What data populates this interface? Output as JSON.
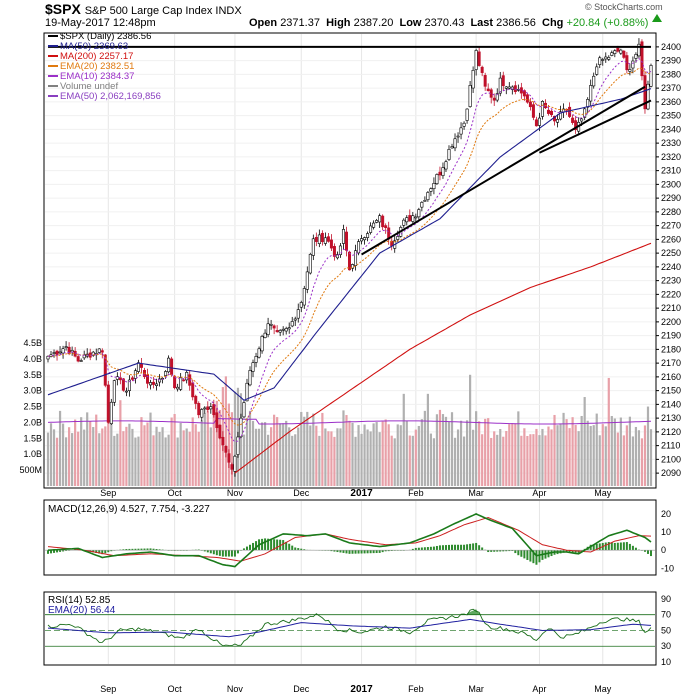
{
  "header": {
    "symbol": "$SPX",
    "name": "S&P 500 Large Cap Index",
    "exchange": "INDX",
    "datetime": "19-May-2017 12:48pm",
    "open_label": "Open",
    "open": "2371.37",
    "high_label": "High",
    "high": "2387.20",
    "low_label": "Low",
    "low": "2370.43",
    "last_label": "Last",
    "last": "2386.56",
    "chg_label": "Chg",
    "chg": "+20.84 (+0.88%)",
    "watermark": "© StockCharts.com"
  },
  "legend": [
    {
      "text": "$SPX (Daily) 2386.56",
      "color": "#000000"
    },
    {
      "text": "MA(50) 2369.63",
      "color": "#1f1f8f"
    },
    {
      "text": "MA(200) 2257.17",
      "color": "#d01010"
    },
    {
      "text": "EMA(20) 2382.51",
      "color": "#e07a10"
    },
    {
      "text": "EMA(10) 2384.37",
      "color": "#9b30c8"
    },
    {
      "text": "Volume undef",
      "color": "#808080"
    },
    {
      "text": "EMA(50) 2,062,169,856",
      "color": "#8a3fc0"
    }
  ],
  "macd_legend": "MACD(12,26,9) 4.527, 7.754, -3.227",
  "rsi_legend": [
    "RSI(14) 52.85",
    "EMA(20) 56.44"
  ],
  "colors": {
    "up": "#ffffff",
    "down": "#c0102a",
    "ma50": "#1f1f8f",
    "ma200": "#d01010",
    "ema20": "#e07a10",
    "ema10": "#9b30c8",
    "vol_up": "#b0b0b0",
    "vol_down": "#e8a0a8",
    "macd": "#1a7a1a",
    "signal": "#cc2020",
    "hist": "#2e8b2e",
    "rsi": "#1a6e1a",
    "rsi_ema": "#2020a0",
    "trend": "#000000"
  },
  "chart_data": [
    {
      "type": "candlestick",
      "title": "$SPX (Daily)",
      "ylim": [
        2085,
        2405
      ],
      "yticks": [
        2090,
        2100,
        2110,
        2120,
        2130,
        2140,
        2150,
        2160,
        2170,
        2180,
        2190,
        2200,
        2210,
        2220,
        2230,
        2240,
        2250,
        2260,
        2270,
        2280,
        2290,
        2300,
        2310,
        2320,
        2330,
        2340,
        2350,
        2360,
        2370,
        2380,
        2390,
        2400
      ],
      "x_labels": [
        "Sep",
        "Oct",
        "Nov",
        "Dec",
        "2017",
        "Feb",
        "Mar",
        "Apr",
        "May"
      ],
      "x_label_positions": [
        20,
        42,
        62,
        84,
        104,
        122,
        142,
        163,
        184
      ],
      "days": 201,
      "anchors": [
        [
          0,
          2175
        ],
        [
          6,
          2182
        ],
        [
          10,
          2172
        ],
        [
          15,
          2178
        ],
        [
          18,
          2180
        ],
        [
          20,
          2127
        ],
        [
          22,
          2160
        ],
        [
          26,
          2150
        ],
        [
          30,
          2170
        ],
        [
          34,
          2153
        ],
        [
          38,
          2160
        ],
        [
          40,
          2172
        ],
        [
          42,
          2153
        ],
        [
          46,
          2161
        ],
        [
          50,
          2133
        ],
        [
          54,
          2140
        ],
        [
          58,
          2111
        ],
        [
          61,
          2090
        ],
        [
          64,
          2130
        ],
        [
          67,
          2165
        ],
        [
          70,
          2182
        ],
        [
          73,
          2200
        ],
        [
          76,
          2190
        ],
        [
          80,
          2195
        ],
        [
          84,
          2215
        ],
        [
          88,
          2259
        ],
        [
          92,
          2262
        ],
        [
          96,
          2246
        ],
        [
          98,
          2265
        ],
        [
          100,
          2238
        ],
        [
          104,
          2262
        ],
        [
          110,
          2275
        ],
        [
          114,
          2258
        ],
        [
          118,
          2272
        ],
        [
          122,
          2279
        ],
        [
          126,
          2295
        ],
        [
          130,
          2309
        ],
        [
          134,
          2330
        ],
        [
          138,
          2345
        ],
        [
          142,
          2396
        ],
        [
          145,
          2370
        ],
        [
          148,
          2362
        ],
        [
          150,
          2375
        ],
        [
          154,
          2372
        ],
        [
          158,
          2365
        ],
        [
          162,
          2343
        ],
        [
          164,
          2358
        ],
        [
          168,
          2345
        ],
        [
          172,
          2355
        ],
        [
          175,
          2338
        ],
        [
          178,
          2352
        ],
        [
          182,
          2388
        ],
        [
          186,
          2393
        ],
        [
          190,
          2398
        ],
        [
          192,
          2382
        ],
        [
          196,
          2399
        ],
        [
          198,
          2357
        ],
        [
          200,
          2386.56
        ]
      ],
      "ma50_anchors": [
        [
          0,
          2147
        ],
        [
          30,
          2170
        ],
        [
          55,
          2162
        ],
        [
          65,
          2143
        ],
        [
          75,
          2152
        ],
        [
          90,
          2195
        ],
        [
          110,
          2250
        ],
        [
          130,
          2275
        ],
        [
          150,
          2320
        ],
        [
          170,
          2352
        ],
        [
          190,
          2362
        ],
        [
          200,
          2369.63
        ]
      ],
      "ma200_anchors": [
        [
          62,
          2090
        ],
        [
          80,
          2120
        ],
        [
          100,
          2150
        ],
        [
          120,
          2180
        ],
        [
          140,
          2205
        ],
        [
          160,
          2225
        ],
        [
          180,
          2240
        ],
        [
          200,
          2257.17
        ]
      ],
      "volume_ylabels": [
        "4.5B",
        "4.0B",
        "3.5B",
        "3.0B",
        "2.5B",
        "2.0B",
        "1.5B",
        "1.0B",
        "500M"
      ],
      "volume_values": [
        4.5,
        4.0,
        3.5,
        3.0,
        2.5,
        2.0,
        1.5,
        1.0,
        0.5
      ],
      "trendlines": [
        {
          "x1": 104,
          "y1": 2249,
          "x2": 198,
          "y2": 2371
        },
        {
          "x1": 163,
          "y1": 2323,
          "x2": 201,
          "y2": 2361
        },
        {
          "x1": 0,
          "y1": 2400,
          "x2": 201,
          "y2": 2400
        }
      ]
    },
    {
      "type": "line",
      "title": "MACD(12,26,9)",
      "ylim": [
        -12,
        26
      ],
      "yticks": [
        -10,
        0,
        10,
        20
      ],
      "macd_anchors": [
        [
          0,
          0
        ],
        [
          10,
          1
        ],
        [
          18,
          -4
        ],
        [
          26,
          -2
        ],
        [
          34,
          -1
        ],
        [
          42,
          -3
        ],
        [
          50,
          -3
        ],
        [
          58,
          -8
        ],
        [
          62,
          -9
        ],
        [
          70,
          3
        ],
        [
          78,
          9
        ],
        [
          86,
          8
        ],
        [
          92,
          9
        ],
        [
          100,
          4
        ],
        [
          110,
          2
        ],
        [
          120,
          4
        ],
        [
          128,
          9
        ],
        [
          134,
          14
        ],
        [
          142,
          20
        ],
        [
          146,
          17
        ],
        [
          154,
          12
        ],
        [
          162,
          -3
        ],
        [
          168,
          -1
        ],
        [
          172,
          -1
        ],
        [
          176,
          -2
        ],
        [
          180,
          2
        ],
        [
          186,
          8
        ],
        [
          192,
          11
        ],
        [
          198,
          7
        ],
        [
          200,
          4.53
        ]
      ],
      "signal_anchors": [
        [
          0,
          2
        ],
        [
          12,
          0
        ],
        [
          22,
          -3
        ],
        [
          34,
          -2
        ],
        [
          46,
          -3
        ],
        [
          56,
          -4
        ],
        [
          64,
          -6
        ],
        [
          72,
          -2
        ],
        [
          82,
          7
        ],
        [
          92,
          9
        ],
        [
          100,
          6
        ],
        [
          112,
          3
        ],
        [
          122,
          4
        ],
        [
          130,
          8
        ],
        [
          138,
          14
        ],
        [
          146,
          18
        ],
        [
          156,
          11
        ],
        [
          164,
          3
        ],
        [
          172,
          0
        ],
        [
          180,
          -1
        ],
        [
          188,
          5
        ],
        [
          196,
          8
        ],
        [
          200,
          7.75
        ]
      ]
    },
    {
      "type": "line",
      "title": "RSI(14)",
      "ylim": [
        10,
        95
      ],
      "yticks": [
        10,
        30,
        50,
        70,
        90
      ],
      "rsi_anchors": [
        [
          0,
          55
        ],
        [
          8,
          58
        ],
        [
          18,
          34
        ],
        [
          24,
          50
        ],
        [
          30,
          52
        ],
        [
          36,
          48
        ],
        [
          44,
          40
        ],
        [
          50,
          52
        ],
        [
          58,
          30
        ],
        [
          64,
          31
        ],
        [
          72,
          58
        ],
        [
          80,
          62
        ],
        [
          90,
          70
        ],
        [
          96,
          52
        ],
        [
          104,
          48
        ],
        [
          112,
          55
        ],
        [
          120,
          48
        ],
        [
          126,
          62
        ],
        [
          132,
          66
        ],
        [
          138,
          70
        ],
        [
          142,
          77
        ],
        [
          146,
          55
        ],
        [
          152,
          52
        ],
        [
          158,
          46
        ],
        [
          162,
          38
        ],
        [
          166,
          54
        ],
        [
          170,
          42
        ],
        [
          174,
          44
        ],
        [
          178,
          50
        ],
        [
          184,
          62
        ],
        [
          190,
          65
        ],
        [
          196,
          61
        ],
        [
          198,
          48
        ],
        [
          200,
          52.85
        ]
      ],
      "rsi_ema_anchors": [
        [
          0,
          53
        ],
        [
          20,
          47
        ],
        [
          40,
          48
        ],
        [
          60,
          42
        ],
        [
          70,
          48
        ],
        [
          84,
          60
        ],
        [
          100,
          56
        ],
        [
          120,
          53
        ],
        [
          140,
          64
        ],
        [
          150,
          58
        ],
        [
          164,
          50
        ],
        [
          180,
          51
        ],
        [
          194,
          58
        ],
        [
          200,
          56.44
        ]
      ]
    }
  ]
}
